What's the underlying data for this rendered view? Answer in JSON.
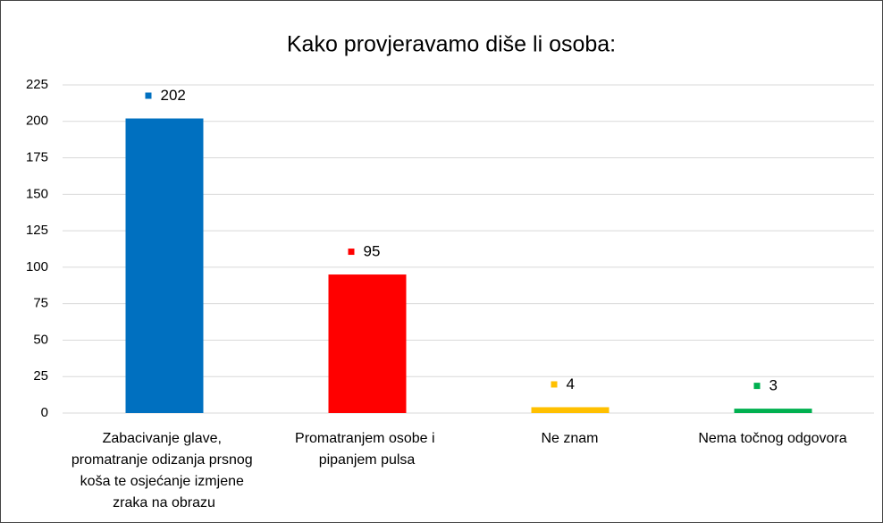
{
  "chart_data": {
    "type": "bar",
    "title": "Kako provjeravamo diše li osoba:",
    "categories": [
      "Zabacivanje glave, promatranje odizanja prsnog koša te osjećanje izmjene zraka na obrazu",
      "Promatranjem osobe i pipanjem pulsa",
      "Ne znam",
      "Nema točnog odgovora"
    ],
    "values": [
      202,
      95,
      4,
      3
    ],
    "colors": [
      "#0070c0",
      "#ff0000",
      "#ffc000",
      "#00b050"
    ],
    "ylim": [
      0,
      225
    ],
    "yticks": [
      0,
      25,
      50,
      75,
      100,
      125,
      150,
      175,
      200,
      225
    ],
    "grid": true
  }
}
